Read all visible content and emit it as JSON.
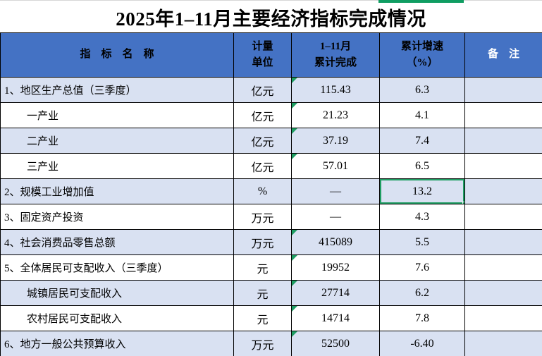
{
  "title": "2025年1–11月主要经济指标完成情况",
  "table": {
    "headers": {
      "indicator": "指　标　名　称",
      "unit": "计量\n单位",
      "value": "1–11月\n累计完成",
      "growth": "累计增速\n（%）",
      "note": "备　注"
    },
    "rows": [
      {
        "name": "1、地区生产总值（三季度）",
        "unit": "亿元",
        "value": "115.43",
        "growth": "6.3",
        "note": ""
      },
      {
        "name": "一产业",
        "unit": "亿元",
        "value": "21.23",
        "growth": "4.1",
        "note": ""
      },
      {
        "name": "二产业",
        "unit": "亿元",
        "value": "37.19",
        "growth": "7.4",
        "note": ""
      },
      {
        "name": "三产业",
        "unit": "亿元",
        "value": "57.01",
        "growth": "6.5",
        "note": ""
      },
      {
        "name": "2、规模工业增加值",
        "unit": "%",
        "value": "—",
        "growth": "13.2",
        "note": ""
      },
      {
        "name": "3、固定资产投资",
        "unit": "万元",
        "value": "—",
        "growth": "4.3",
        "note": ""
      },
      {
        "name": "4、社会消费品零售总额",
        "unit": "万元",
        "value": "415089",
        "growth": "5.5",
        "note": ""
      },
      {
        "name": "5、全体居民可支配收入（三季度）",
        "unit": "元",
        "value": "19952",
        "growth": "7.6",
        "note": ""
      },
      {
        "name": "城镇居民可支配收入",
        "unit": "元",
        "value": "27714",
        "growth": "6.2",
        "note": ""
      },
      {
        "name": "农村居民可支配收入",
        "unit": "元",
        "value": "14714",
        "growth": "7.8",
        "note": ""
      },
      {
        "name": "6、地方一般公共预算收入",
        "unit": "万元",
        "value": "52500",
        "growth": "-6.40",
        "note": ""
      }
    ]
  },
  "selection": {
    "selected_cell_value": "13.2",
    "selected_row": "2、规模工业增加值",
    "selected_column": "累计增速（%）"
  },
  "colors": {
    "header_bg": "#4472C4",
    "alt_row_bg": "#D9E1F2",
    "selection_green": "#1F9E63",
    "flag_green": "#1F9E63",
    "column_indicator_green": "#0F9D62",
    "border": "#000000"
  }
}
